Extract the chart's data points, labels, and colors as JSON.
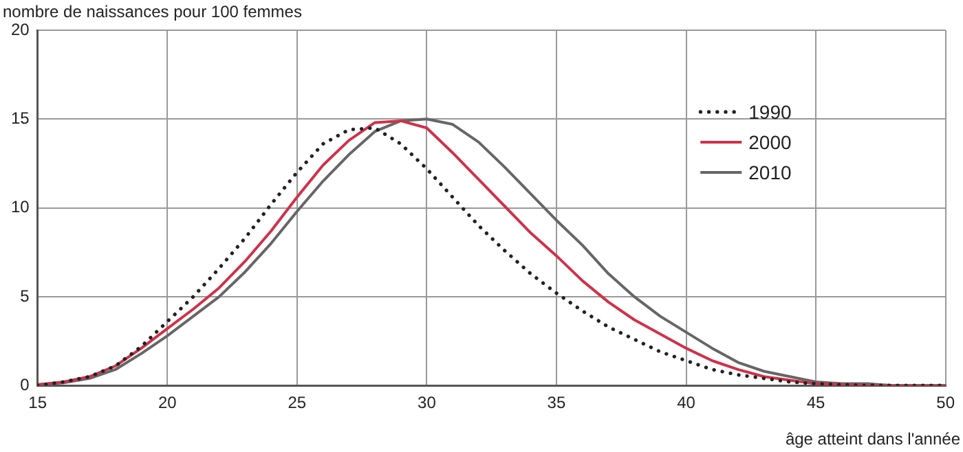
{
  "chart_data": {
    "type": "line",
    "ylabel": "nombre de naissances pour 100 femmes",
    "xlabel": "âge atteint dans l'année",
    "x": [
      15,
      16,
      17,
      18,
      19,
      20,
      21,
      22,
      23,
      24,
      25,
      26,
      27,
      28,
      29,
      30,
      31,
      32,
      33,
      34,
      35,
      36,
      37,
      38,
      39,
      40,
      41,
      42,
      43,
      44,
      45,
      46,
      47,
      48,
      49,
      50
    ],
    "series": [
      {
        "name": "1990",
        "color": "#222222",
        "line_style": "dotted",
        "values": [
          0,
          0.2,
          0.5,
          1.1,
          2.2,
          3.6,
          5.0,
          6.6,
          8.3,
          10.2,
          12.0,
          13.6,
          14.4,
          14.5,
          13.6,
          12.2,
          10.6,
          9.0,
          7.6,
          6.3,
          5.2,
          4.2,
          3.3,
          2.6,
          1.9,
          1.4,
          0.9,
          0.6,
          0.4,
          0.2,
          0.1,
          0.05,
          0,
          0,
          0,
          0
        ]
      },
      {
        "name": "2000",
        "color": "#d0314a",
        "line_style": "solid",
        "values": [
          0.05,
          0.2,
          0.5,
          1.1,
          2.1,
          3.2,
          4.3,
          5.5,
          7.0,
          8.7,
          10.6,
          12.4,
          13.8,
          14.8,
          14.9,
          14.5,
          13.1,
          11.6,
          10.1,
          8.6,
          7.3,
          5.9,
          4.7,
          3.7,
          2.9,
          2.1,
          1.4,
          0.9,
          0.5,
          0.3,
          0.1,
          0.05,
          0,
          0,
          0,
          0
        ]
      },
      {
        "name": "2010",
        "color": "#666666",
        "line_style": "solid",
        "values": [
          0.05,
          0.15,
          0.4,
          0.9,
          1.8,
          2.8,
          3.9,
          5.0,
          6.4,
          8.0,
          9.8,
          11.5,
          13.0,
          14.3,
          14.9,
          15.0,
          14.7,
          13.7,
          12.3,
          10.8,
          9.3,
          7.9,
          6.3,
          5.0,
          3.9,
          3.0,
          2.1,
          1.3,
          0.8,
          0.5,
          0.2,
          0.1,
          0.1,
          0,
          0,
          0
        ]
      }
    ],
    "xlim": [
      15,
      50
    ],
    "xticks": [
      15,
      20,
      25,
      30,
      35,
      40,
      45,
      50
    ],
    "ylim": [
      0,
      20
    ],
    "yticks": [
      0,
      5,
      10,
      15,
      20
    ],
    "grid": true,
    "legend": "top right",
    "marker": "none"
  }
}
